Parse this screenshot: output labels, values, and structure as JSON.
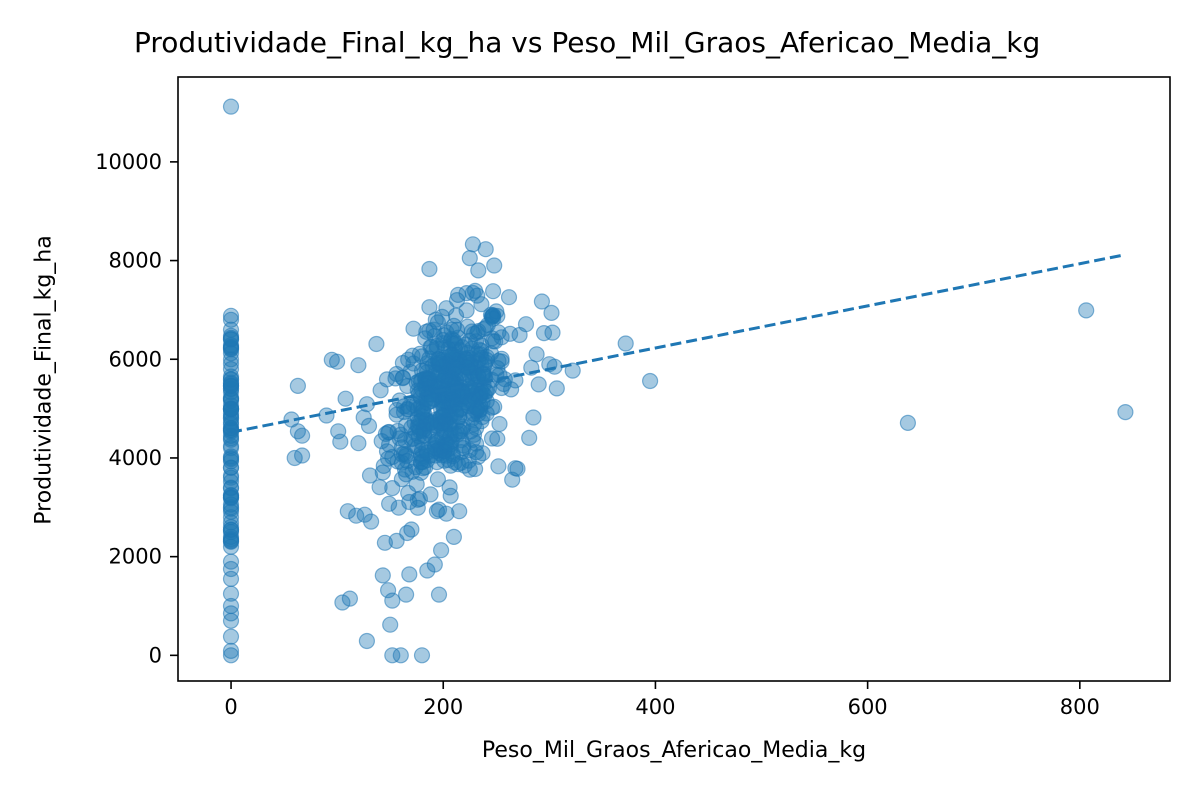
{
  "chart_data": {
    "type": "scatter",
    "title": "Produtividade_Final_kg_ha vs Peso_Mil_Graos_Afericao_Media_kg",
    "xlabel": "Peso_Mil_Graos_Afericao_Media_kg",
    "ylabel": "Produtividade_Final_kg_ha",
    "xlim": [
      -50,
      885
    ],
    "ylim": [
      -520,
      11720
    ],
    "xticks": [
      0,
      200,
      400,
      600,
      800
    ],
    "yticks": [
      0,
      2000,
      4000,
      6000,
      8000,
      10000
    ],
    "grid": false,
    "legend": "none",
    "point_color": "#1f77b4",
    "point_alpha": 0.4,
    "trendline": {
      "style": "dashed",
      "color": "#1f77b4",
      "points": [
        [
          0,
          4520
        ],
        [
          843,
          8120
        ]
      ]
    },
    "points": [
      [
        0,
        11120
      ],
      [
        0,
        6880
      ],
      [
        0,
        6800
      ],
      [
        0,
        6600
      ],
      [
        0,
        6400
      ],
      [
        0,
        6200
      ],
      [
        0,
        6000
      ],
      [
        0,
        5800
      ],
      [
        0,
        5600
      ],
      [
        0,
        5400
      ],
      [
        0,
        5200
      ],
      [
        0,
        5000
      ],
      [
        0,
        4800
      ],
      [
        0,
        4600
      ],
      [
        0,
        4400
      ],
      [
        0,
        4200
      ],
      [
        0,
        4000
      ],
      [
        0,
        3800
      ],
      [
        0,
        3600
      ],
      [
        0,
        3400
      ],
      [
        0,
        3200
      ],
      [
        0,
        3000
      ],
      [
        0,
        2800
      ],
      [
        0,
        2600
      ],
      [
        0,
        2400
      ],
      [
        0,
        2200
      ],
      [
        0,
        1900
      ],
      [
        0,
        1750
      ],
      [
        0,
        1550
      ],
      [
        0,
        1250
      ],
      [
        0,
        1000
      ],
      [
        0,
        850
      ],
      [
        0,
        700
      ],
      [
        0,
        380
      ],
      [
        0,
        90
      ],
      [
        0,
        0
      ],
      [
        57,
        4780
      ],
      [
        60,
        4000
      ],
      [
        63,
        5460
      ],
      [
        63,
        4540
      ],
      [
        67,
        4450
      ],
      [
        67,
        4050
      ],
      [
        90,
        4860
      ],
      [
        95,
        5990
      ],
      [
        100,
        5950
      ],
      [
        101,
        4540
      ],
      [
        103,
        4330
      ],
      [
        105,
        1070
      ],
      [
        108,
        5200
      ],
      [
        110,
        2920
      ],
      [
        112,
        1150
      ],
      [
        118,
        2830
      ],
      [
        120,
        4300
      ],
      [
        120,
        5880
      ],
      [
        125,
        4820
      ],
      [
        126,
        2850
      ],
      [
        128,
        5090
      ],
      [
        128,
        290
      ],
      [
        130,
        4650
      ],
      [
        132,
        2710
      ],
      [
        137,
        6310
      ],
      [
        140,
        3410
      ],
      [
        143,
        1620
      ],
      [
        145,
        2280
      ],
      [
        148,
        1320
      ],
      [
        150,
        620
      ],
      [
        152,
        1110
      ],
      [
        152,
        0
      ],
      [
        156,
        2320
      ],
      [
        157,
        3930
      ],
      [
        160,
        0
      ],
      [
        165,
        1230
      ],
      [
        166,
        2480
      ],
      [
        168,
        1640
      ],
      [
        170,
        2550
      ],
      [
        177,
        5300
      ],
      [
        180,
        0
      ],
      [
        185,
        1720
      ],
      [
        187,
        7830
      ],
      [
        192,
        1840
      ],
      [
        196,
        1230
      ],
      [
        198,
        2130
      ],
      [
        203,
        2870
      ],
      [
        210,
        2400
      ],
      [
        215,
        2920
      ],
      [
        225,
        8050
      ],
      [
        228,
        8330
      ],
      [
        233,
        7800
      ],
      [
        240,
        8230
      ],
      [
        247,
        7380
      ],
      [
        248,
        7900
      ],
      [
        252,
        3830
      ],
      [
        265,
        3560
      ],
      [
        270,
        3780
      ],
      [
        278,
        6710
      ],
      [
        285,
        4820
      ],
      [
        288,
        6100
      ],
      [
        290,
        5490
      ],
      [
        293,
        7170
      ],
      [
        295,
        6530
      ],
      [
        300,
        5900
      ],
      [
        302,
        6940
      ],
      [
        303,
        6540
      ],
      [
        305,
        5850
      ],
      [
        307,
        5410
      ],
      [
        322,
        5770
      ],
      [
        372,
        6320
      ],
      [
        395,
        5560
      ],
      [
        638,
        4710
      ],
      [
        806,
        6990
      ],
      [
        843,
        4930
      ]
    ]
  }
}
